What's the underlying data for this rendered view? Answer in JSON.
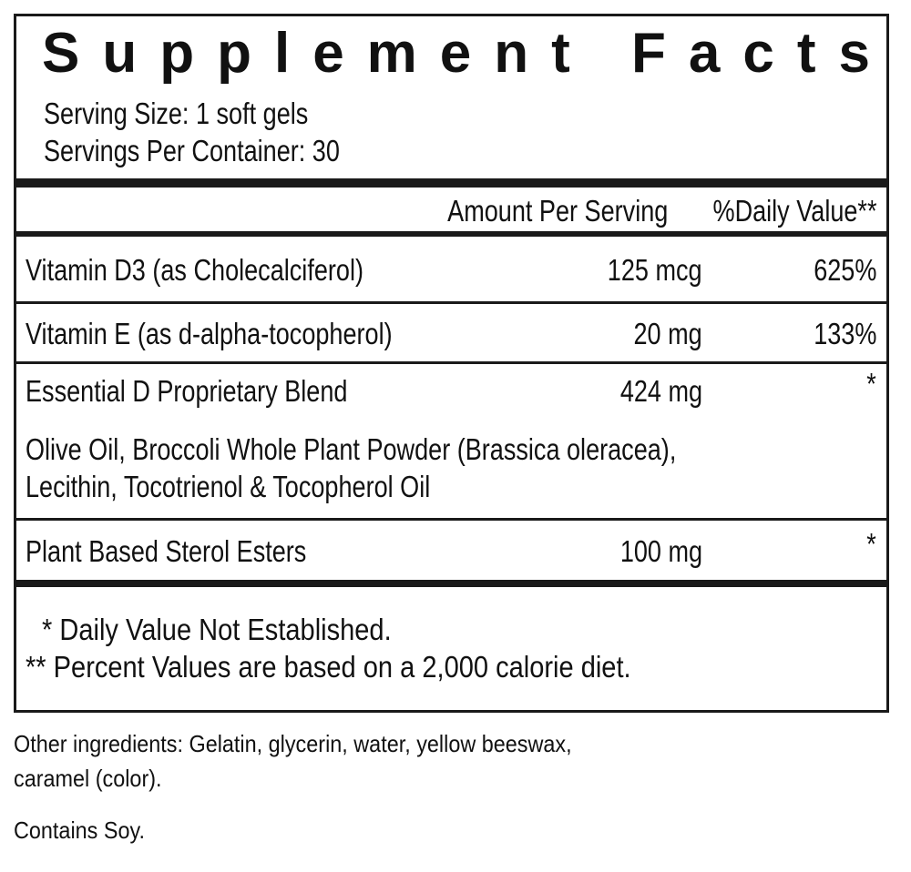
{
  "title": "Supplement Facts",
  "serving_size": "Serving Size: 1 soft gels",
  "servings_per_container": "Servings Per Container: 30",
  "header": {
    "amount": "Amount Per Serving",
    "dv": "%Daily Value**"
  },
  "rows": [
    {
      "name": "Vitamin D3 (as Cholecalciferol)",
      "amount": "125 mcg",
      "dv": "625%"
    },
    {
      "name": "Vitamin E (as d-alpha-tocopherol)",
      "amount": "20 mg",
      "dv": "133%"
    },
    {
      "name": "Essential D Proprietary Blend",
      "amount": "424 mg",
      "dv": "*",
      "ingredients": [
        "Olive Oil, Broccoli Whole Plant Powder (Brassica oleracea),",
        "Lecithin, Tocotrienol & Tocopherol Oil"
      ]
    },
    {
      "name": "Plant Based Sterol Esters",
      "amount": "100 mg",
      "dv": "*"
    }
  ],
  "footnotes": [
    "* Daily Value Not Established.",
    "** Percent Values are based on a 2,000 calorie diet."
  ],
  "other_ingredients": [
    "Other ingredients: Gelatin, glycerin, water, yellow beeswax,",
    "caramel (color)."
  ],
  "allergen": "Contains Soy."
}
